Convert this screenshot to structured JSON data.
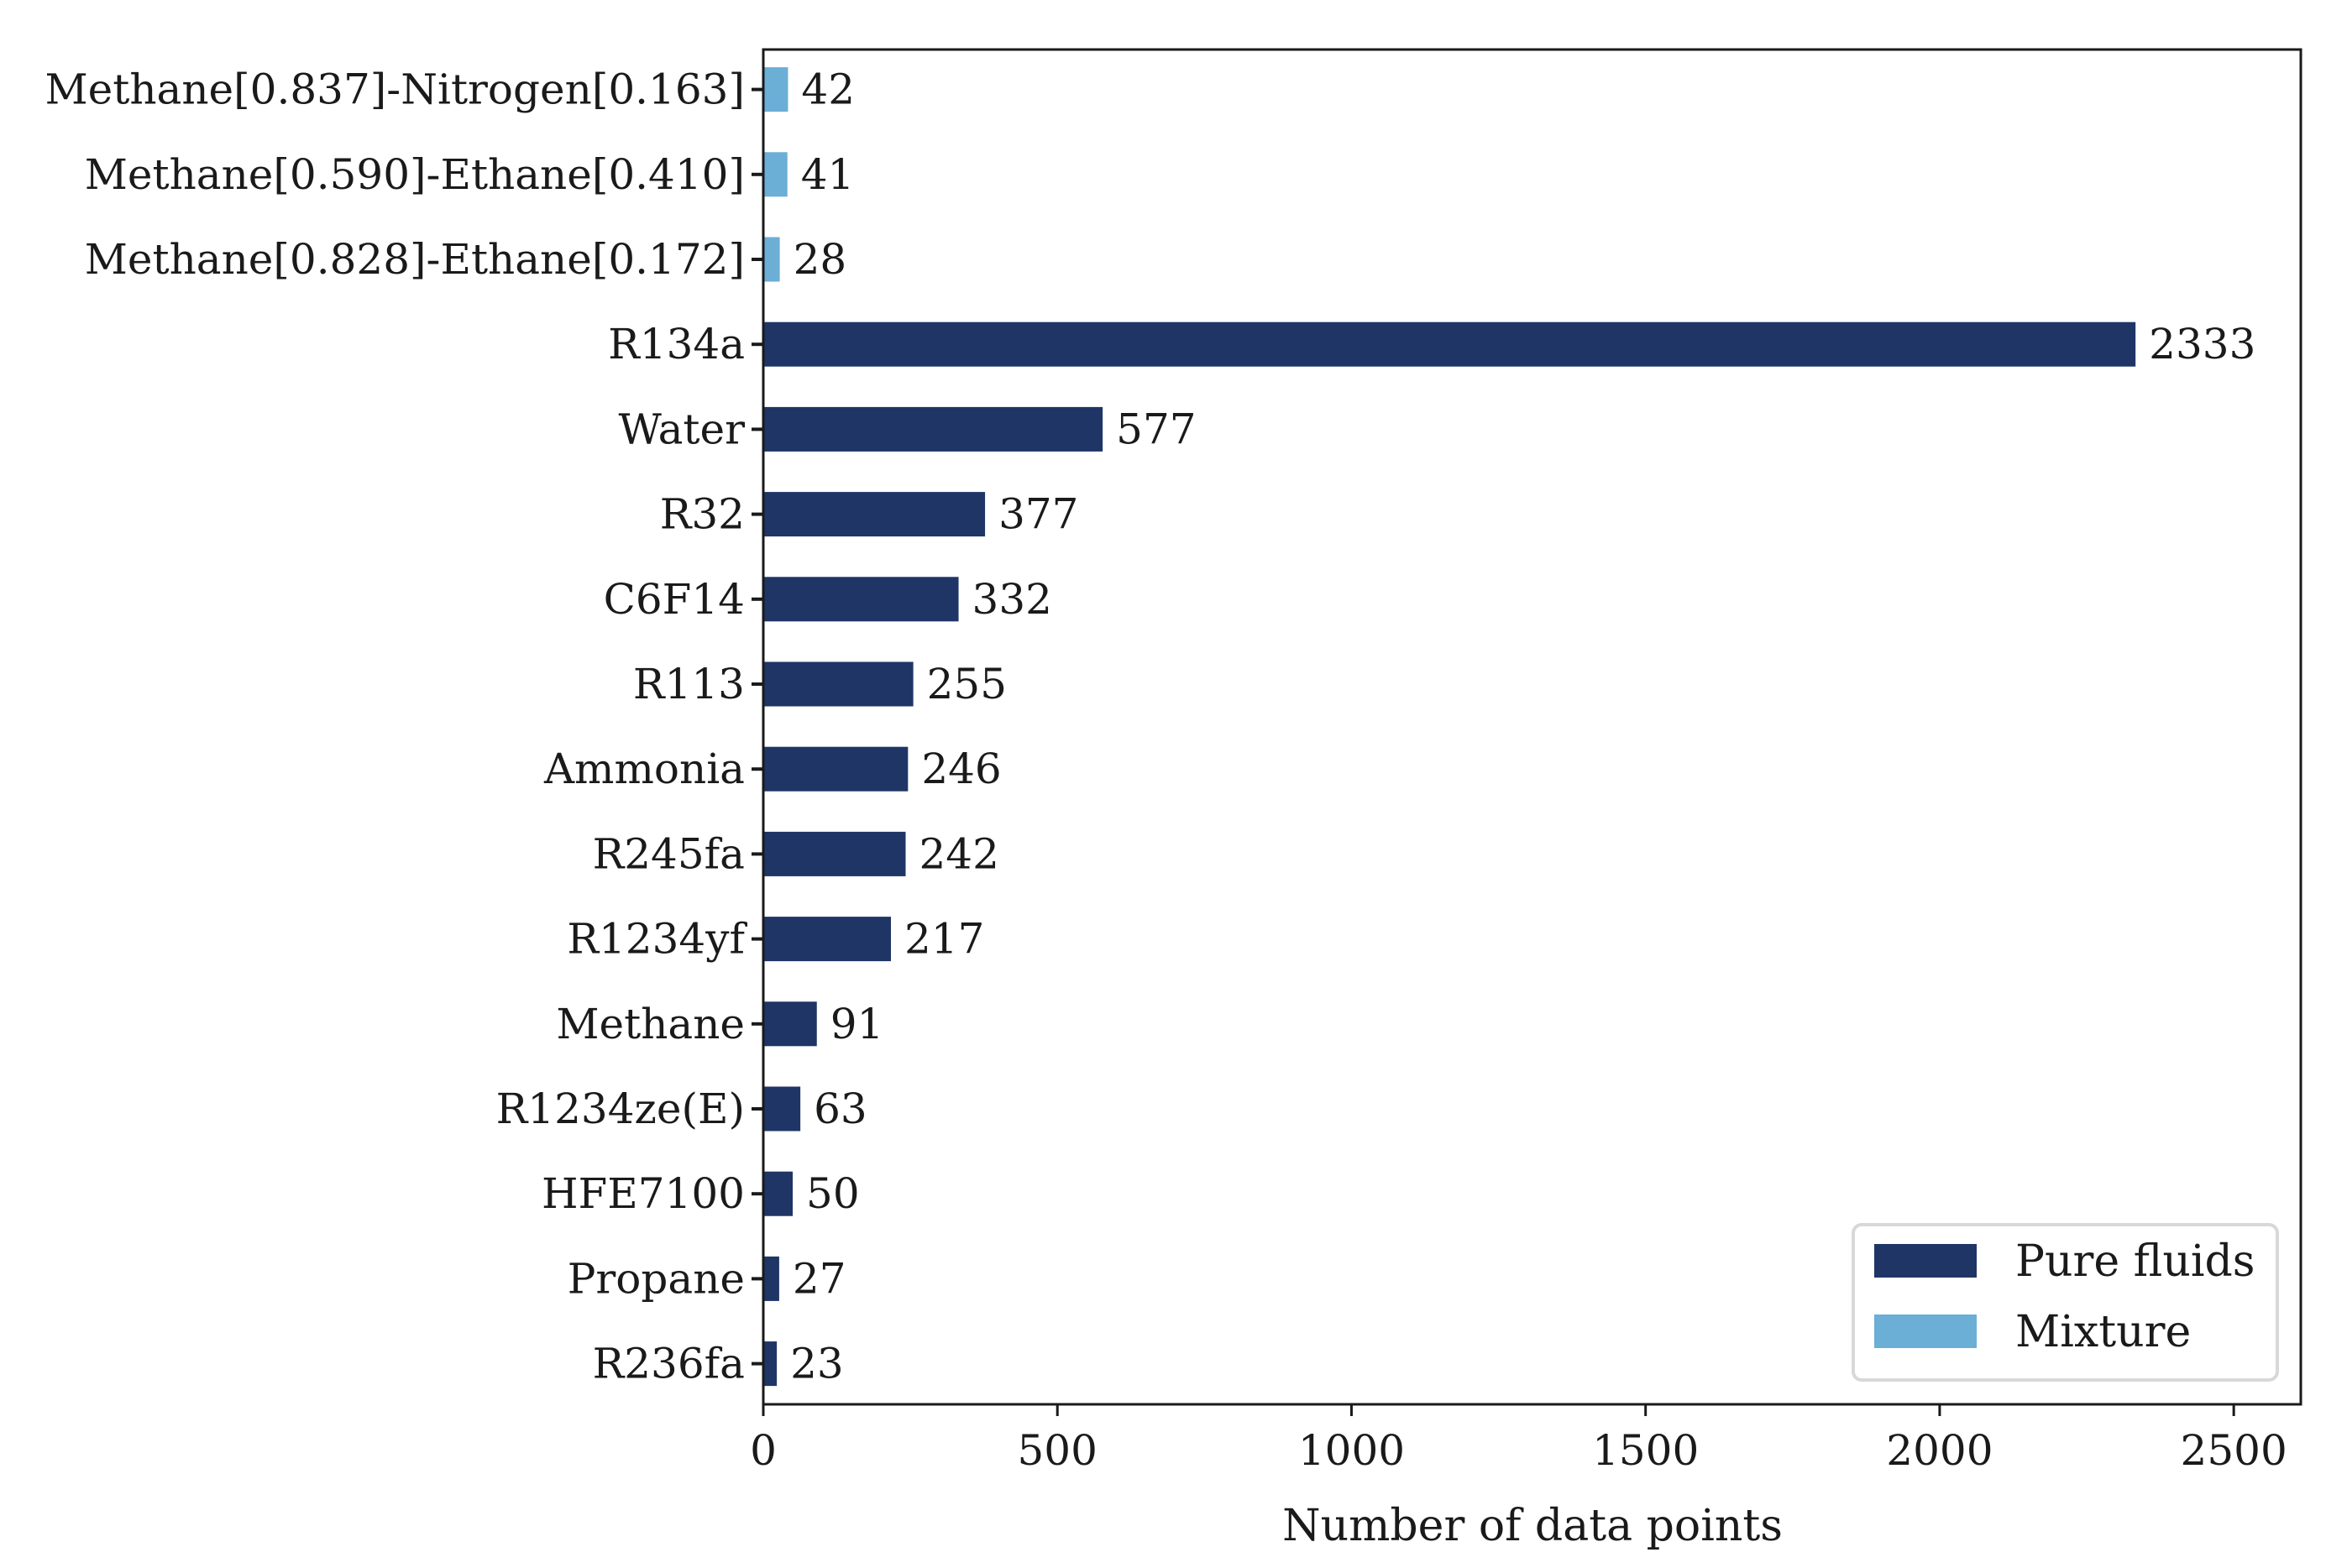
{
  "chart_data": {
    "type": "bar",
    "orientation": "horizontal",
    "title": "",
    "xlabel": "Number of data points",
    "ylabel": "",
    "xlim": [
      0,
      2614
    ],
    "xticks": [
      0,
      500,
      1000,
      1500,
      2000,
      2500
    ],
    "grid": false,
    "legend_position": "bottom-right",
    "categories": [
      "Methane[0.837]-Nitrogen[0.163]",
      "Methane[0.590]-Ethane[0.410]",
      "Methane[0.828]-Ethane[0.172]",
      "R134a",
      "Water",
      "R32",
      "C6F14",
      "R113",
      "Ammonia",
      "R245fa",
      "R1234yf",
      "Methane",
      "R1234ze(E)",
      "HFE7100",
      "Propane",
      "R236fa"
    ],
    "values": [
      42,
      41,
      28,
      2333,
      577,
      377,
      332,
      255,
      246,
      242,
      217,
      91,
      63,
      50,
      27,
      23
    ],
    "groups": [
      "Mixture",
      "Mixture",
      "Mixture",
      "Pure fluids",
      "Pure fluids",
      "Pure fluids",
      "Pure fluids",
      "Pure fluids",
      "Pure fluids",
      "Pure fluids",
      "Pure fluids",
      "Pure fluids",
      "Pure fluids",
      "Pure fluids",
      "Pure fluids",
      "Pure fluids"
    ],
    "series": [
      {
        "name": "Pure fluids",
        "color": "#1f3566"
      },
      {
        "name": "Mixture",
        "color": "#6baed6"
      }
    ]
  }
}
